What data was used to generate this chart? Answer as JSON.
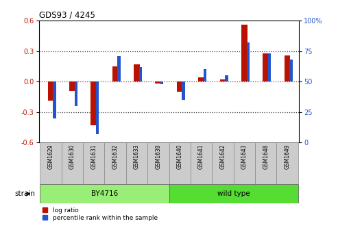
{
  "title": "GDS93 / 4245",
  "samples": [
    "GSM1629",
    "GSM1630",
    "GSM1631",
    "GSM1632",
    "GSM1633",
    "GSM1639",
    "GSM1640",
    "GSM1641",
    "GSM1642",
    "GSM1643",
    "GSM1648",
    "GSM1649"
  ],
  "log_ratio": [
    -0.19,
    -0.09,
    -0.43,
    0.15,
    0.17,
    -0.02,
    -0.1,
    0.04,
    0.02,
    0.56,
    0.28,
    0.26
  ],
  "percentile": [
    20,
    30,
    7,
    71,
    62,
    48,
    35,
    60,
    55,
    82,
    73,
    68
  ],
  "strains": [
    {
      "label": "BY4716",
      "start": 0,
      "end": 6,
      "color": "#99ee77"
    },
    {
      "label": "wild type",
      "start": 6,
      "end": 12,
      "color": "#55dd33"
    }
  ],
  "bar_color_red": "#bb1100",
  "bar_color_blue": "#2255cc",
  "ylim_left": [
    -0.6,
    0.6
  ],
  "ylim_right": [
    0,
    100
  ],
  "yticks_left": [
    -0.6,
    -0.3,
    0.0,
    0.3,
    0.6
  ],
  "yticks_right": [
    0,
    25,
    50,
    75,
    100
  ],
  "hline_color": "#cc2200",
  "dotted_color": "#333333",
  "bg_color": "#ffffff",
  "legend_log_ratio": "log ratio",
  "legend_percentile": "percentile rank within the sample",
  "strain_label": "strain",
  "red_bar_width": 0.28,
  "blue_bar_width": 0.14
}
